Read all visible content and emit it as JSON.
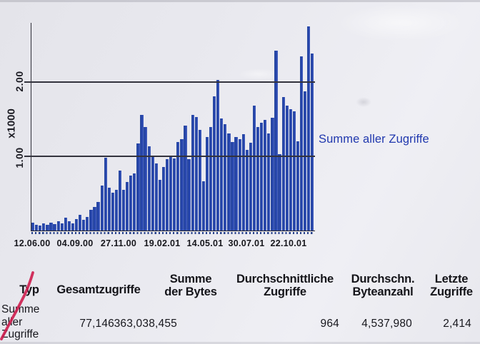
{
  "page": {
    "kind": "scanned web statistics report",
    "background_color": "#e9e9ef"
  },
  "chart_data": {
    "type": "bar",
    "title": "",
    "legend": "Summe aller Zugriffe",
    "legend_color": "#2038ae",
    "bar_color": "#2b4ab1",
    "y_axis_label": "x1000",
    "y_tick_labels": [
      "1.00",
      "2.00"
    ],
    "gridlines_at": [
      1.0,
      2.0
    ],
    "ylim": [
      0,
      2.78
    ],
    "x_tick_labels": [
      "12.06.00",
      "04.09.00",
      "27.11.00",
      "19.02.01",
      "14.05.01",
      "30.07.01",
      "22.10.01"
    ],
    "values": [
      0.1,
      0.07,
      0.06,
      0.09,
      0.07,
      0.1,
      0.08,
      0.12,
      0.09,
      0.17,
      0.12,
      0.09,
      0.15,
      0.21,
      0.14,
      0.18,
      0.27,
      0.31,
      0.38,
      0.6,
      0.97,
      0.57,
      0.5,
      0.54,
      0.8,
      0.54,
      0.65,
      0.73,
      0.76,
      1.16,
      1.55,
      1.38,
      1.13,
      0.99,
      0.9,
      0.68,
      0.85,
      0.95,
      1.0,
      0.96,
      1.18,
      1.22,
      1.4,
      0.95,
      1.55,
      1.52,
      1.35,
      0.66,
      1.25,
      1.38,
      1.8,
      2.02,
      1.5,
      1.42,
      1.3,
      1.18,
      1.25,
      1.22,
      1.29,
      1.08,
      1.17,
      1.67,
      1.38,
      1.44,
      1.48,
      1.3,
      1.51,
      2.41,
      1.02,
      1.79,
      1.67,
      1.62,
      1.59,
      1.19,
      2.33,
      1.86,
      2.73,
      2.37
    ]
  },
  "table": {
    "headers": [
      "Typ",
      "Gesamtzugriffe",
      "Summe\nder Bytes",
      "Durchschnittliche\nZugriffe",
      "Durchschn.\nByteanzahl",
      "Letzte\nZugriffe"
    ],
    "row": [
      "Summe\naller\nZugriffe",
      "77,146",
      "363,038,455",
      "964",
      "4,537,980",
      "2,414"
    ]
  },
  "annotations": {
    "red_pen_mark_color": "#ce2150"
  }
}
